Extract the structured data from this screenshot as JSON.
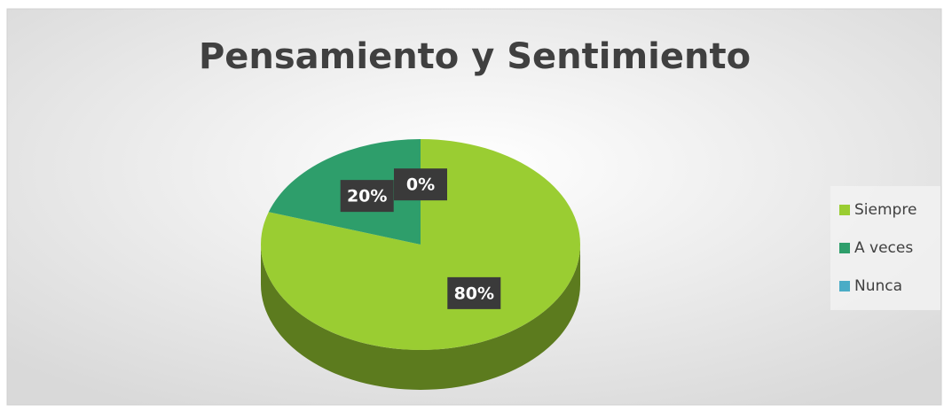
{
  "chart_data": {
    "type": "pie",
    "title": "Pensamiento y Sentimiento",
    "categories": [
      "Siempre",
      "A veces",
      "Nunca"
    ],
    "values": [
      80,
      20,
      0
    ],
    "value_labels": [
      "80%",
      "20%",
      "0%"
    ],
    "colors": [
      "#9acd32",
      "#2e9e6b",
      "#4bacc6"
    ],
    "legend": "right"
  }
}
